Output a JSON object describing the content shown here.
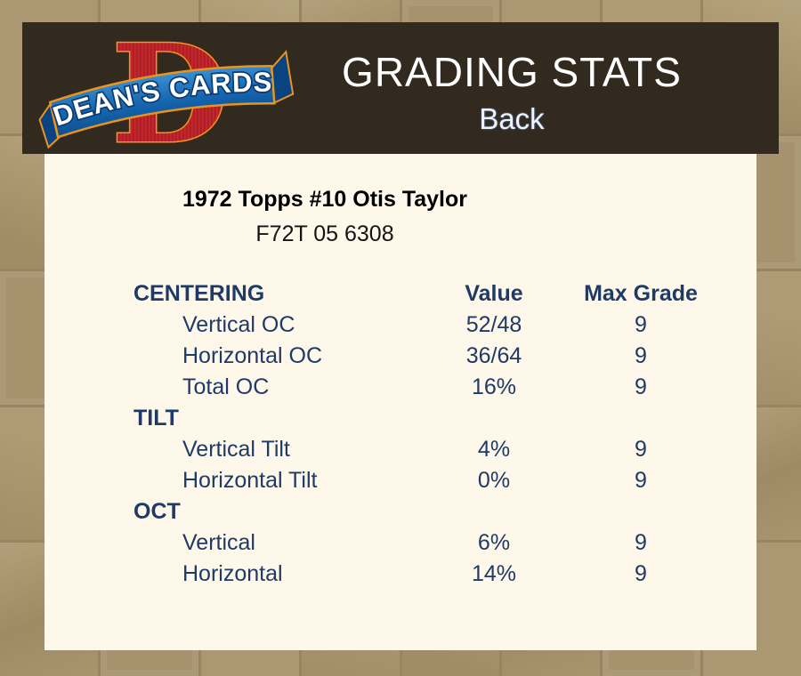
{
  "header": {
    "title": "GRADING STATS",
    "side_label": "Back",
    "logo": {
      "brand": "DEAN'S CARDS",
      "monogram": "D"
    }
  },
  "card": {
    "title": "1972 Topps #10 Otis Taylor",
    "serial": "F72T 05 6308"
  },
  "stats": {
    "rows": [
      {
        "type": "header",
        "category": "CENTERING",
        "value": "Value",
        "max_grade": "Max Grade"
      },
      {
        "type": "data",
        "category": "Vertical OC",
        "value": "52/48",
        "max_grade": "9"
      },
      {
        "type": "data",
        "category": "Horizontal OC",
        "value": "36/64",
        "max_grade": "9"
      },
      {
        "type": "data",
        "category": "Total OC",
        "value": "16%",
        "max_grade": "9"
      },
      {
        "type": "section",
        "category": "TILT",
        "value": "",
        "max_grade": ""
      },
      {
        "type": "data",
        "category": "Vertical Tilt",
        "value": "4%",
        "max_grade": "9"
      },
      {
        "type": "data",
        "category": "Horizontal Tilt",
        "value": "0%",
        "max_grade": "9"
      },
      {
        "type": "section",
        "category": "OCT",
        "value": "",
        "max_grade": ""
      },
      {
        "type": "data",
        "category": "Vertical",
        "value": "6%",
        "max_grade": "9"
      },
      {
        "type": "data",
        "category": "Horizontal",
        "value": "14%",
        "max_grade": "9"
      }
    ]
  },
  "colors": {
    "page_background": "#a5916b",
    "header_bar": "#32291f",
    "panel_background": "#fdf8ea",
    "table_text": "#1f3a66",
    "header_text": "#ffffff",
    "logo_red": "#c1272d",
    "logo_gold": "#f7941d",
    "logo_blue": "#1566b0"
  }
}
